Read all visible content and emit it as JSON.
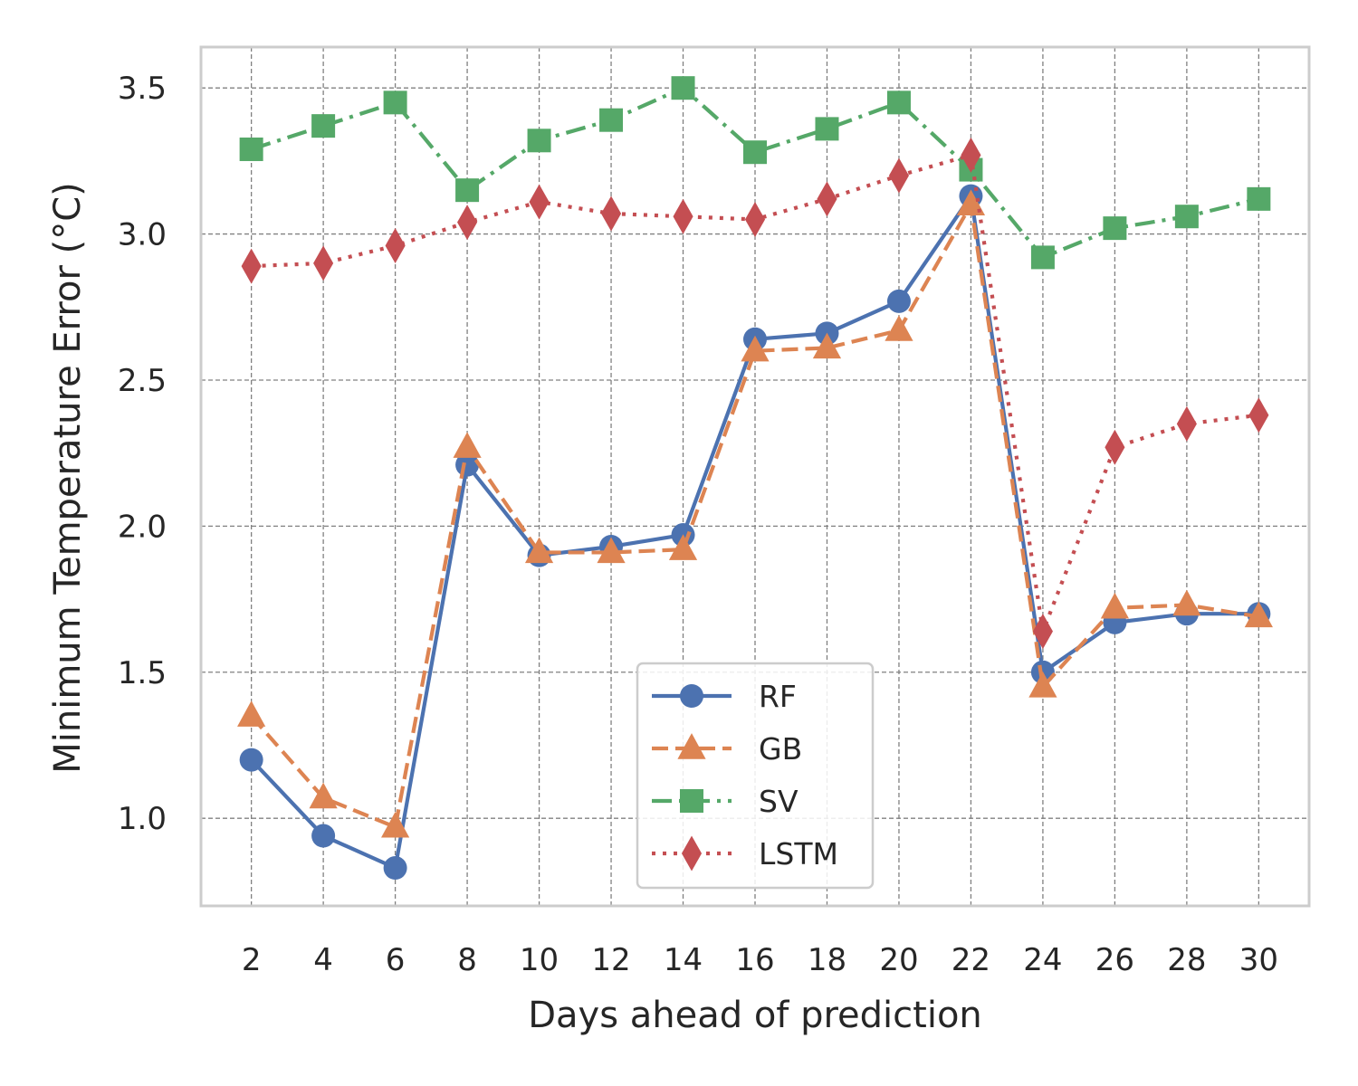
{
  "chart_data": {
    "type": "line",
    "title": "",
    "xlabel": "Days ahead of prediction",
    "ylabel": "Minimum Temperature Error (°C)",
    "x": [
      2,
      4,
      6,
      8,
      10,
      12,
      14,
      16,
      18,
      20,
      22,
      24,
      26,
      28,
      30
    ],
    "x_ticks": [
      "2",
      "4",
      "6",
      "8",
      "10",
      "12",
      "14",
      "16",
      "18",
      "20",
      "22",
      "24",
      "26",
      "28",
      "30"
    ],
    "y_ticks": [
      "1.0",
      "1.5",
      "2.0",
      "2.5",
      "3.0",
      "3.5"
    ],
    "xlim": [
      0.6,
      31.4
    ],
    "ylim": [
      0.7,
      3.64
    ],
    "grid": true,
    "legend_position": "lower-center",
    "series": [
      {
        "name": "RF",
        "color": "#4c72b0",
        "marker": "circle",
        "linestyle": "solid",
        "values": [
          1.2,
          0.94,
          0.83,
          2.21,
          1.9,
          1.93,
          1.97,
          2.64,
          2.66,
          2.77,
          3.13,
          1.5,
          1.67,
          1.7,
          1.7
        ]
      },
      {
        "name": "GB",
        "color": "#dd8452",
        "marker": "triangle",
        "linestyle": "dashed",
        "values": [
          1.35,
          1.07,
          0.97,
          2.27,
          1.91,
          1.91,
          1.92,
          2.6,
          2.61,
          2.67,
          3.1,
          1.45,
          1.72,
          1.73,
          1.69
        ]
      },
      {
        "name": "SV",
        "color": "#55a868",
        "marker": "square",
        "linestyle": "dashdot",
        "values": [
          3.29,
          3.37,
          3.45,
          3.15,
          3.32,
          3.39,
          3.5,
          3.28,
          3.36,
          3.45,
          3.22,
          2.92,
          3.02,
          3.06,
          3.12
        ]
      },
      {
        "name": "LSTM",
        "color": "#c44e52",
        "marker": "diamond",
        "linestyle": "dotted",
        "values": [
          2.89,
          2.9,
          2.96,
          3.04,
          3.11,
          3.07,
          3.06,
          3.05,
          3.12,
          3.2,
          3.27,
          1.64,
          2.27,
          2.35,
          2.38
        ]
      }
    ]
  }
}
